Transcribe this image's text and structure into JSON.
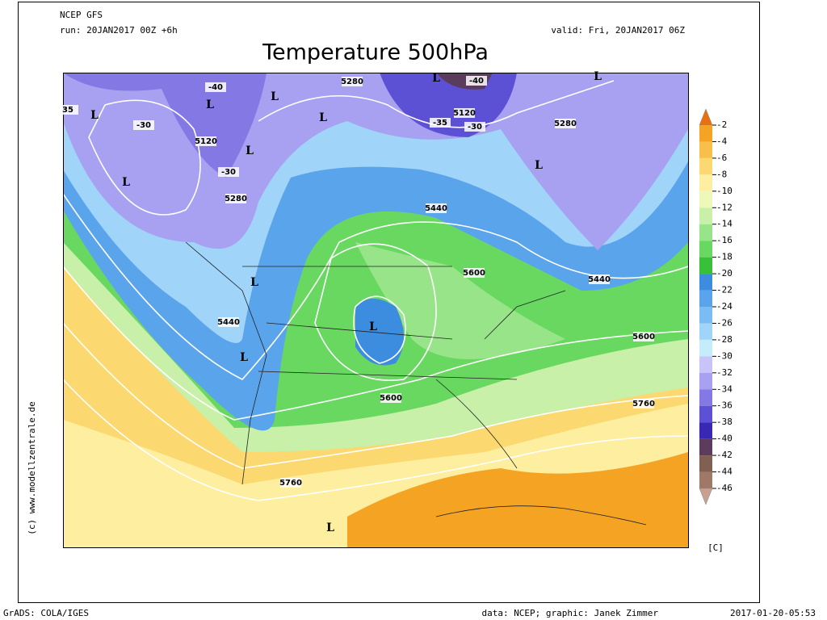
{
  "header": {
    "model": "NCEP GFS",
    "run": "run: 20JAN2017 00Z +6h",
    "valid": "valid: Fri, 20JAN2017 06Z",
    "title": "Temperature 500hPa"
  },
  "map": {
    "contour_labels": [
      "5280",
      "5120",
      "5280",
      "5120",
      "5280",
      "5440",
      "5600",
      "5440",
      "5440",
      "5600",
      "5600",
      "5760",
      "5760",
      "-40",
      "-30",
      "-40",
      "-35",
      "-30",
      "-30",
      "35"
    ],
    "lows": [
      "L",
      "L",
      "L",
      "L",
      "L",
      "L",
      "L",
      "L",
      "L",
      "L",
      "L",
      "L",
      "L"
    ]
  },
  "colorbar": {
    "labels": [
      -2,
      -4,
      -6,
      -8,
      -10,
      -12,
      -14,
      -16,
      -18,
      -20,
      -22,
      -24,
      -26,
      -28,
      -30,
      -32,
      -34,
      -36,
      -38,
      -40,
      -42,
      -44,
      -46
    ],
    "unit": "[C]",
    "colors": [
      "#e8700f",
      "#f5a323",
      "#f8c04a",
      "#fbd870",
      "#fdeea0",
      "#eef8b8",
      "#c8f0a8",
      "#98e488",
      "#68d860",
      "#38c038",
      "#3c8ce0",
      "#5aa4ec",
      "#7cbcf4",
      "#a0d4f8",
      "#c4ecfa",
      "#c8c4f8",
      "#a8a0f0",
      "#8478e4",
      "#5c50d4",
      "#3828b4",
      "#5c3c5c",
      "#806050",
      "#a07868",
      "#c8a090"
    ]
  },
  "footer": {
    "software": "GrADS: COLA/IGES",
    "credit": "data: NCEP; graphic: Janek Zimmer",
    "timestamp": "2017-01-20-05:53",
    "copyright": "(c) www.modellzentrale.de"
  }
}
